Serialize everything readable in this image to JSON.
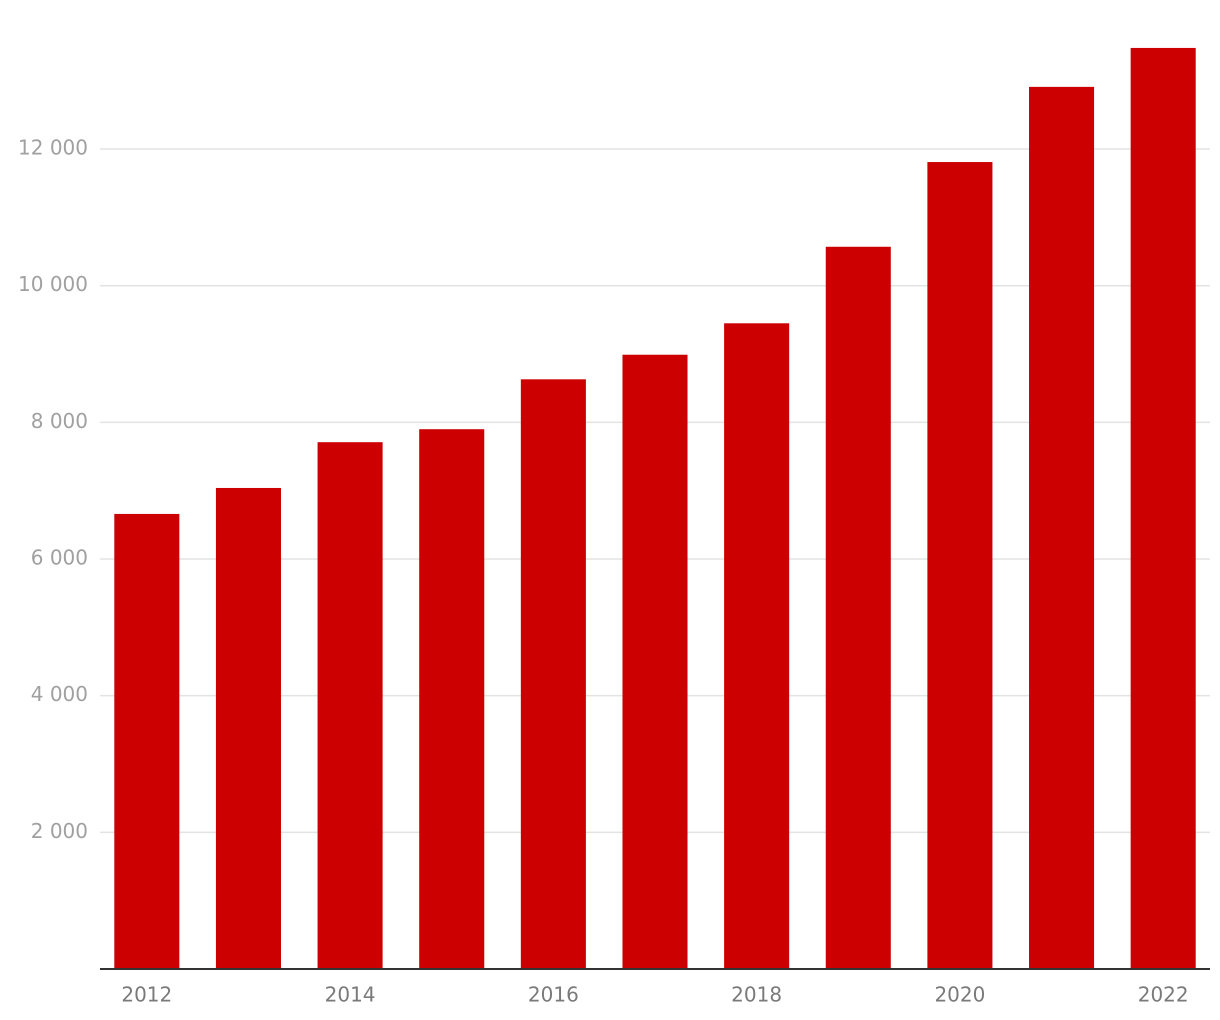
{
  "chart_data": {
    "type": "bar",
    "categories": [
      "2012",
      null,
      "2014",
      null,
      "2016",
      null,
      "2018",
      null,
      "2020",
      null,
      "2022"
    ],
    "values": [
      6660,
      7040,
      7710,
      7900,
      8630,
      8990,
      9450,
      10570,
      11810,
      12910,
      13480
    ],
    "color": "#cc0000",
    "ylim": [
      0,
      14000
    ],
    "yticks": [
      {
        "value": 2000,
        "label": "2 000"
      },
      {
        "value": 4000,
        "label": "4 000"
      },
      {
        "value": 6000,
        "label": "6 000"
      },
      {
        "value": 8000,
        "label": "8 000"
      },
      {
        "value": 10000,
        "label": "10 000"
      },
      {
        "value": 12000,
        "label": "12 000"
      }
    ],
    "grid": true
  }
}
